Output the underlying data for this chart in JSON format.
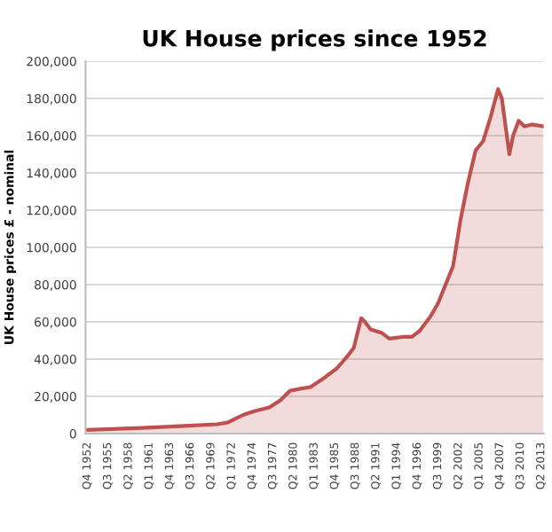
{
  "chart_data": {
    "type": "area",
    "title": "UK House prices since 1952",
    "ylabel": "UK House prices £ - nominal",
    "x": [
      "1952-10",
      "1960-01",
      "1965-01",
      "1970-01",
      "1971-07",
      "1972-07",
      "1973-07",
      "1975-01",
      "1977-01",
      "1978-07",
      "1979-10",
      "1981-01",
      "1982-07",
      "1984-01",
      "1986-01",
      "1987-07",
      "1988-04",
      "1989-04",
      "1989-10",
      "1990-07",
      "1992-01",
      "1993-01",
      "1995-01",
      "1996-01",
      "1997-01",
      "1998-07",
      "1999-07",
      "2000-07",
      "2001-07",
      "2002-07",
      "2003-07",
      "2004-07",
      "2005-07",
      "2006-07",
      "2007-07",
      "2008-01",
      "2008-07",
      "2009-01",
      "2009-07",
      "2010-04",
      "2011-01",
      "2012-01",
      "2013-07"
    ],
    "series": [
      {
        "color": "#c0504d",
        "values": [
          2000,
          3000,
          4000,
          5000,
          6000,
          8000,
          10000,
          12000,
          14000,
          18000,
          23000,
          24000,
          25000,
          29000,
          35000,
          42000,
          46000,
          62000,
          60000,
          56000,
          54000,
          51000,
          52000,
          52000,
          55000,
          63000,
          70000,
          80000,
          90000,
          115000,
          135000,
          152000,
          157000,
          170000,
          185000,
          180000,
          165000,
          150000,
          160000,
          168000,
          165000,
          166000,
          165000
        ]
      }
    ],
    "xlim": [
      "1952-07",
      "2013-08"
    ],
    "xticks": [
      {
        "value": "1952-10",
        "label": "Q4 1952"
      },
      {
        "value": "1955-07",
        "label": "Q3 1955"
      },
      {
        "value": "1958-04",
        "label": "Q2 1958"
      },
      {
        "value": "1961-01",
        "label": "Q1 1961"
      },
      {
        "value": "1963-10",
        "label": "Q4 1963"
      },
      {
        "value": "1966-07",
        "label": "Q3 1966"
      },
      {
        "value": "1969-04",
        "label": "Q2 1969"
      },
      {
        "value": "1972-01",
        "label": "Q1 1972"
      },
      {
        "value": "1974-10",
        "label": "Q4 1974"
      },
      {
        "value": "1977-07",
        "label": "Q3 1977"
      },
      {
        "value": "1980-04",
        "label": "Q2 1980"
      },
      {
        "value": "1983-01",
        "label": "Q1 1983"
      },
      {
        "value": "1985-10",
        "label": "Q4 1985"
      },
      {
        "value": "1988-07",
        "label": "Q3 1988"
      },
      {
        "value": "1991-04",
        "label": "Q2 1991"
      },
      {
        "value": "1994-01",
        "label": "Q1 1994"
      },
      {
        "value": "1996-10",
        "label": "Q4 1996"
      },
      {
        "value": "1999-07",
        "label": "Q3 1999"
      },
      {
        "value": "2002-04",
        "label": "Q2 2002"
      },
      {
        "value": "2005-01",
        "label": "Q1 2005"
      },
      {
        "value": "2007-10",
        "label": "Q4 2007"
      },
      {
        "value": "2010-07",
        "label": "Q3 2010"
      },
      {
        "value": "2013-04",
        "label": "Q2 2013"
      }
    ],
    "ylim": [
      0,
      200000
    ],
    "yticks": [
      {
        "value": 0,
        "label": "0"
      },
      {
        "value": 20000,
        "label": "20,000"
      },
      {
        "value": 40000,
        "label": "40,000"
      },
      {
        "value": 60000,
        "label": "60,000"
      },
      {
        "value": 80000,
        "label": "80,000"
      },
      {
        "value": 100000,
        "label": "100,000"
      },
      {
        "value": 120000,
        "label": "120,000"
      },
      {
        "value": 140000,
        "label": "140,000"
      },
      {
        "value": 160000,
        "label": "160,000"
      },
      {
        "value": 180000,
        "label": "180,000"
      },
      {
        "value": 200000,
        "label": "200,000"
      }
    ],
    "grid": "y"
  }
}
